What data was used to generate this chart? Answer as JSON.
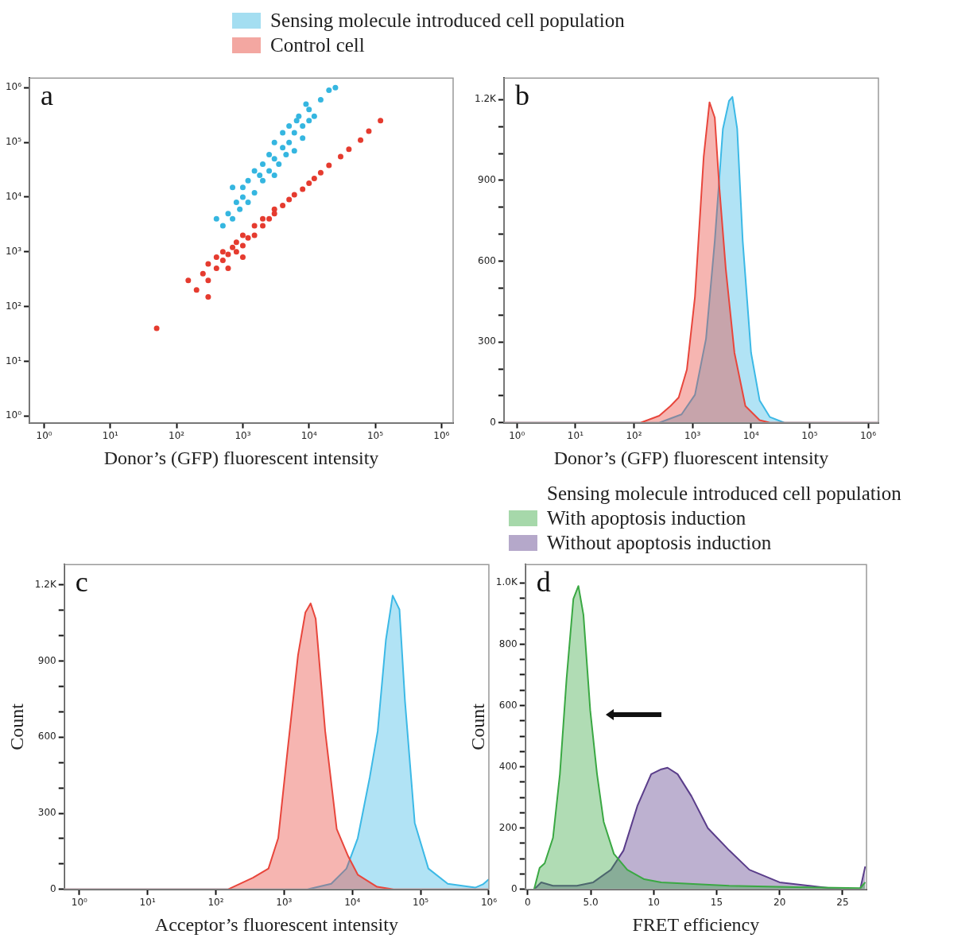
{
  "chart_data": [
    {
      "type": "scatter",
      "xlabel": "Donor’s (GFP) fluorescent intensity",
      "log": "xy",
      "legend": "top",
      "marker": "circle",
      "annotations": [
        "a"
      ],
      "xlim": [
        0.6,
        1500000
      ],
      "ylim": [
        0.75,
        1500000
      ],
      "xticks": [
        {
          "value": 1,
          "label": "10⁰"
        },
        {
          "value": 10,
          "label": "10¹"
        },
        {
          "value": 100,
          "label": "10²"
        },
        {
          "value": 1000,
          "label": "10³"
        },
        {
          "value": 10000,
          "label": "10⁴"
        },
        {
          "value": 100000,
          "label": "10⁵"
        },
        {
          "value": 1000000,
          "label": "10⁶"
        }
      ],
      "yticks": [
        {
          "value": 1,
          "label": "10⁰"
        },
        {
          "value": 10,
          "label": "10¹"
        },
        {
          "value": 100,
          "label": "10²"
        },
        {
          "value": 1000,
          "label": "10³"
        },
        {
          "value": 10000,
          "label": "10⁴"
        },
        {
          "value": 100000,
          "label": "10⁵"
        },
        {
          "value": 1000000,
          "label": "10⁶"
        }
      ],
      "series": [
        {
          "name": "Sensing molecule introduced cell population",
          "color": "#35b6e0",
          "x": [
            500,
            600,
            700,
            800,
            900,
            1000,
            1000,
            1200,
            1500,
            1500,
            2000,
            2000,
            2500,
            2500,
            3000,
            3000,
            3500,
            4000,
            4000,
            5000,
            5000,
            6000,
            6000,
            7000,
            8000,
            8000,
            10000,
            10000,
            12000,
            15000,
            20000,
            700,
            1200,
            1800,
            3000,
            4500,
            6500,
            9000,
            25000,
            400
          ],
          "values": [
            3000,
            5000,
            4000,
            8000,
            6000,
            10000,
            15000,
            20000,
            12000,
            30000,
            20000,
            40000,
            30000,
            60000,
            50000,
            100000,
            40000,
            80000,
            150000,
            100000,
            200000,
            70000,
            150000,
            300000,
            120000,
            200000,
            250000,
            400000,
            300000,
            600000,
            900000,
            15000,
            8000,
            25000,
            25000,
            60000,
            250000,
            500000,
            1000000,
            4000
          ]
        },
        {
          "name": "Control cell",
          "color": "#e53b2f",
          "x": [
            150,
            200,
            250,
            300,
            300,
            400,
            400,
            500,
            500,
            600,
            700,
            800,
            800,
            1000,
            1000,
            1200,
            1500,
            1500,
            2000,
            2000,
            2500,
            3000,
            3000,
            4000,
            5000,
            6000,
            8000,
            10000,
            12000,
            15000,
            20000,
            30000,
            40000,
            60000,
            80000,
            120000,
            300,
            50,
            600,
            1000
          ],
          "values": [
            300,
            200,
            400,
            300,
            600,
            500,
            800,
            700,
            1000,
            900,
            1200,
            1000,
            1500,
            1300,
            2000,
            1800,
            2000,
            3000,
            3000,
            4000,
            4000,
            5000,
            6000,
            7000,
            9000,
            11000,
            14000,
            18000,
            22000,
            28000,
            38000,
            55000,
            75000,
            110000,
            160000,
            250000,
            150,
            40,
            500,
            800
          ]
        }
      ]
    },
    {
      "type": "area",
      "xlabel": "Donor’s (GFP) fluorescent intensity",
      "log": "x",
      "annotations": [
        "b"
      ],
      "xlim": [
        0.6,
        1500000
      ],
      "ylim": [
        0,
        1280
      ],
      "xticks": [
        {
          "value": 1,
          "label": "10⁰"
        },
        {
          "value": 10,
          "label": "10¹"
        },
        {
          "value": 100,
          "label": "10²"
        },
        {
          "value": 1000,
          "label": "10³"
        },
        {
          "value": 10000,
          "label": "10⁴"
        },
        {
          "value": 100000,
          "label": "10⁵"
        },
        {
          "value": 1000000,
          "label": "10⁶"
        }
      ],
      "yticks": [
        0,
        {
          "value": 100,
          "label": null
        },
        {
          "value": 200,
          "label": null
        },
        300,
        {
          "value": 400,
          "label": null
        },
        {
          "value": 500,
          "label": null
        },
        600,
        {
          "value": 700,
          "label": null
        },
        {
          "value": 800,
          "label": null
        },
        900,
        {
          "value": 1000,
          "label": null
        },
        {
          "value": 1100,
          "label": null
        },
        {
          "value": 1200,
          "label": "1.2K"
        }
      ],
      "series": [
        {
          "color": "#e8463c",
          "x": [
            0.6,
            130,
            270,
            420,
            580,
            800,
            1100,
            1550,
            1950,
            2400,
            2850,
            3700,
            5200,
            8000,
            14000,
            21000,
            1500000
          ],
          "values": [
            0,
            0,
            26,
            62,
            94,
            197,
            468,
            987,
            1190,
            1133,
            883,
            571,
            260,
            62,
            10,
            0,
            0
          ]
        },
        {
          "color": "#3cb9e6",
          "x": [
            0.6,
            270,
            650,
            1100,
            1700,
            2400,
            3300,
            4200,
            4800,
            5800,
            7200,
            10000,
            14000,
            21000,
            37000,
            1500000
          ],
          "values": [
            0,
            0,
            31,
            104,
            312,
            675,
            1091,
            1195,
            1210,
            1091,
            675,
            260,
            83,
            21,
            0,
            0
          ]
        }
      ]
    },
    {
      "type": "area",
      "xlabel": "Acceptor’s fluorescent intensity",
      "ylabel": "Count",
      "log": "x",
      "annotations": [
        "c"
      ],
      "xlim": [
        0.6,
        1000000
      ],
      "ylim": [
        0,
        1280
      ],
      "xticks": [
        {
          "value": 1,
          "label": "10⁰"
        },
        {
          "value": 10,
          "label": "10¹"
        },
        {
          "value": 100,
          "label": "10²"
        },
        {
          "value": 1000,
          "label": "10³"
        },
        {
          "value": 10000,
          "label": "10⁴"
        },
        {
          "value": 100000,
          "label": "10⁵"
        },
        {
          "value": 1000000,
          "label": "10⁶"
        }
      ],
      "yticks": [
        0,
        {
          "value": 100,
          "label": null
        },
        {
          "value": 200,
          "label": null
        },
        300,
        {
          "value": 400,
          "label": null
        },
        {
          "value": 500,
          "label": null
        },
        600,
        {
          "value": 700,
          "label": null
        },
        {
          "value": 800,
          "label": null
        },
        900,
        {
          "value": 1000,
          "label": null
        },
        {
          "value": 1100,
          "label": null
        },
        {
          "value": 1200,
          "label": "1.2K"
        }
      ],
      "series": [
        {
          "color": "#e8463c",
          "x": [
            0.6,
            150,
            350,
            590,
            820,
            1140,
            1600,
            2050,
            2450,
            2900,
            4000,
            5900,
            8700,
            12000,
            23000,
            40000,
            1000000
          ],
          "values": [
            0,
            0,
            46,
            82,
            202,
            563,
            923,
            1091,
            1127,
            1067,
            623,
            238,
            130,
            58,
            10,
            0,
            0
          ]
        },
        {
          "color": "#3cb9e6",
          "x": [
            0.6,
            2200,
            4900,
            8200,
            12000,
            18000,
            23500,
            31000,
            39000,
            49000,
            59000,
            82000,
            130000,
            250000,
            630000,
            820000,
            1000000
          ],
          "values": [
            0,
            0,
            22,
            82,
            202,
            442,
            623,
            983,
            1158,
            1103,
            743,
            262,
            82,
            22,
            7,
            20,
            40
          ]
        }
      ]
    },
    {
      "type": "area",
      "xlabel": "FRET efficiency",
      "ylabel": "Count",
      "legend": "top",
      "legend_title": "Sensing molecule introduced cell population",
      "annotations": [
        "d"
      ],
      "xlim": [
        -0.2,
        26.9
      ],
      "ylim": [
        0,
        1060
      ],
      "xticks": [
        0,
        {
          "value": 5,
          "label": "5.0"
        },
        10,
        15,
        20,
        25
      ],
      "yticks": [
        0,
        {
          "value": 50,
          "label": null
        },
        {
          "value": 100,
          "label": null
        },
        {
          "value": 150,
          "label": null
        },
        200,
        {
          "value": 250,
          "label": null
        },
        {
          "value": 300,
          "label": null
        },
        {
          "value": 350,
          "label": null
        },
        400,
        {
          "value": 450,
          "label": null
        },
        {
          "value": 500,
          "label": null
        },
        {
          "value": 550,
          "label": null
        },
        600,
        {
          "value": 650,
          "label": null
        },
        {
          "value": 700,
          "label": null
        },
        {
          "value": 750,
          "label": null
        },
        800,
        {
          "value": 850,
          "label": null
        },
        {
          "value": 900,
          "label": null
        },
        {
          "value": 950,
          "label": null
        },
        {
          "value": 1000,
          "label": "1.0K"
        }
      ],
      "series": [
        {
          "name": "With apoptosis induction",
          "color": "#3aa843",
          "x": [
            0.5,
            0.94,
            1.34,
            2.0,
            2.55,
            3.08,
            3.62,
            4.02,
            4.42,
            4.96,
            5.5,
            6.03,
            6.84,
            7.9,
            9.25,
            10.6,
            16,
            21.3,
            26.4,
            26.8
          ],
          "values": [
            0,
            70,
            85,
            168,
            376,
            688,
            948,
            990,
            896,
            584,
            376,
            220,
            116,
            64,
            33,
            23,
            12,
            7,
            4,
            23
          ]
        },
        {
          "name": "Without apoptosis induction",
          "color": "#5a3d8a",
          "x": [
            0.5,
            1.07,
            2,
            3.9,
            5.2,
            6.6,
            7.6,
            8.7,
            9.8,
            10.6,
            11.1,
            11.9,
            13,
            14.3,
            16,
            17.6,
            20,
            24,
            26.4,
            26.8
          ],
          "values": [
            0,
            23,
            12,
            12,
            23,
            64,
            127,
            272,
            376,
            392,
            397,
            376,
            304,
            200,
            127,
            64,
            23,
            4,
            0,
            75
          ]
        }
      ]
    }
  ]
}
